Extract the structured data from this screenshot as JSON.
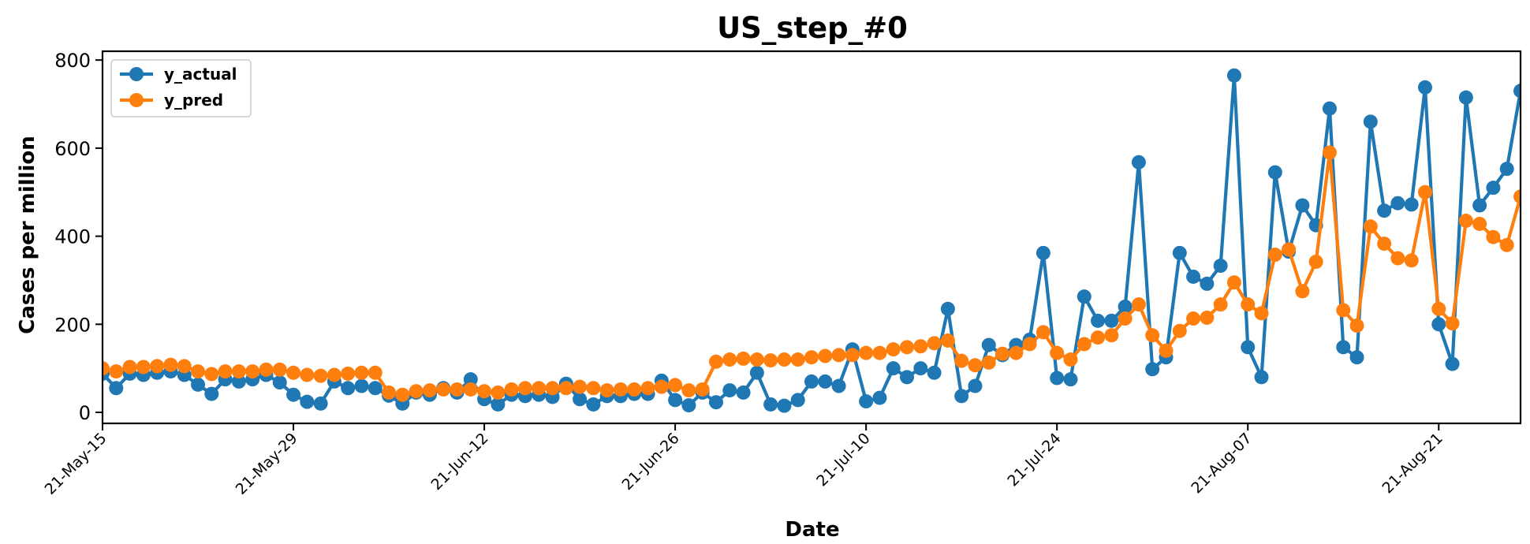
{
  "chart_data": {
    "type": "line",
    "title": "US_step_#0",
    "xlabel": "Date",
    "ylabel": "Cases per million",
    "ylim": [
      -25,
      820
    ],
    "y_ticks": [
      0,
      200,
      400,
      600,
      800
    ],
    "x_tick_labels": [
      "21-May-15",
      "21-May-29",
      "21-Jun-12",
      "21-Jun-26",
      "21-Jul-10",
      "21-Jul-24",
      "21-Aug-07",
      "21-Aug-21"
    ],
    "x_tick_positions": [
      0,
      14,
      28,
      42,
      56,
      70,
      84,
      98
    ],
    "xlim": [
      0,
      104
    ],
    "grid": false,
    "legend_position": "top-left",
    "series": [
      {
        "name": "y_actual",
        "color": "#1f77b4",
        "values": [
          88,
          55,
          88,
          85,
          90,
          93,
          85,
          63,
          42,
          75,
          70,
          75,
          85,
          68,
          40,
          24,
          20,
          70,
          55,
          60,
          55,
          38,
          20,
          45,
          40,
          55,
          45,
          75,
          30,
          18,
          40,
          37,
          40,
          35,
          65,
          30,
          18,
          37,
          37,
          42,
          42,
          72,
          28,
          16,
          45,
          23,
          50,
          45,
          90,
          18,
          15,
          28,
          70,
          70,
          60,
          143,
          25,
          33,
          100,
          80,
          100,
          90,
          235,
          37,
          60,
          153,
          130,
          153,
          165,
          362,
          78,
          75,
          263,
          208,
          208,
          240,
          568,
          98,
          125,
          362,
          308,
          292,
          333,
          765,
          148,
          80,
          545,
          365,
          470,
          425,
          690,
          148,
          125,
          660,
          458,
          475,
          472,
          738,
          200,
          110,
          715,
          470,
          510,
          553,
          730
        ]
      },
      {
        "name": "y_pred",
        "color": "#ff7f0e",
        "values": [
          100,
          93,
          103,
          103,
          105,
          108,
          105,
          93,
          87,
          93,
          93,
          93,
          97,
          97,
          90,
          85,
          83,
          85,
          88,
          90,
          90,
          45,
          40,
          48,
          50,
          52,
          52,
          52,
          48,
          45,
          52,
          55,
          55,
          55,
          55,
          58,
          55,
          50,
          52,
          52,
          55,
          58,
          62,
          50,
          52,
          115,
          120,
          122,
          120,
          118,
          120,
          120,
          125,
          128,
          130,
          130,
          135,
          135,
          143,
          148,
          150,
          157,
          163,
          117,
          107,
          113,
          133,
          135,
          155,
          182,
          135,
          120,
          155,
          170,
          175,
          213,
          245,
          175,
          140,
          185,
          213,
          215,
          245,
          295,
          245,
          225,
          358,
          370,
          275,
          342,
          590,
          232,
          197,
          422,
          383,
          350,
          345,
          500,
          235,
          202,
          435,
          428,
          398,
          380,
          490
        ]
      }
    ]
  }
}
